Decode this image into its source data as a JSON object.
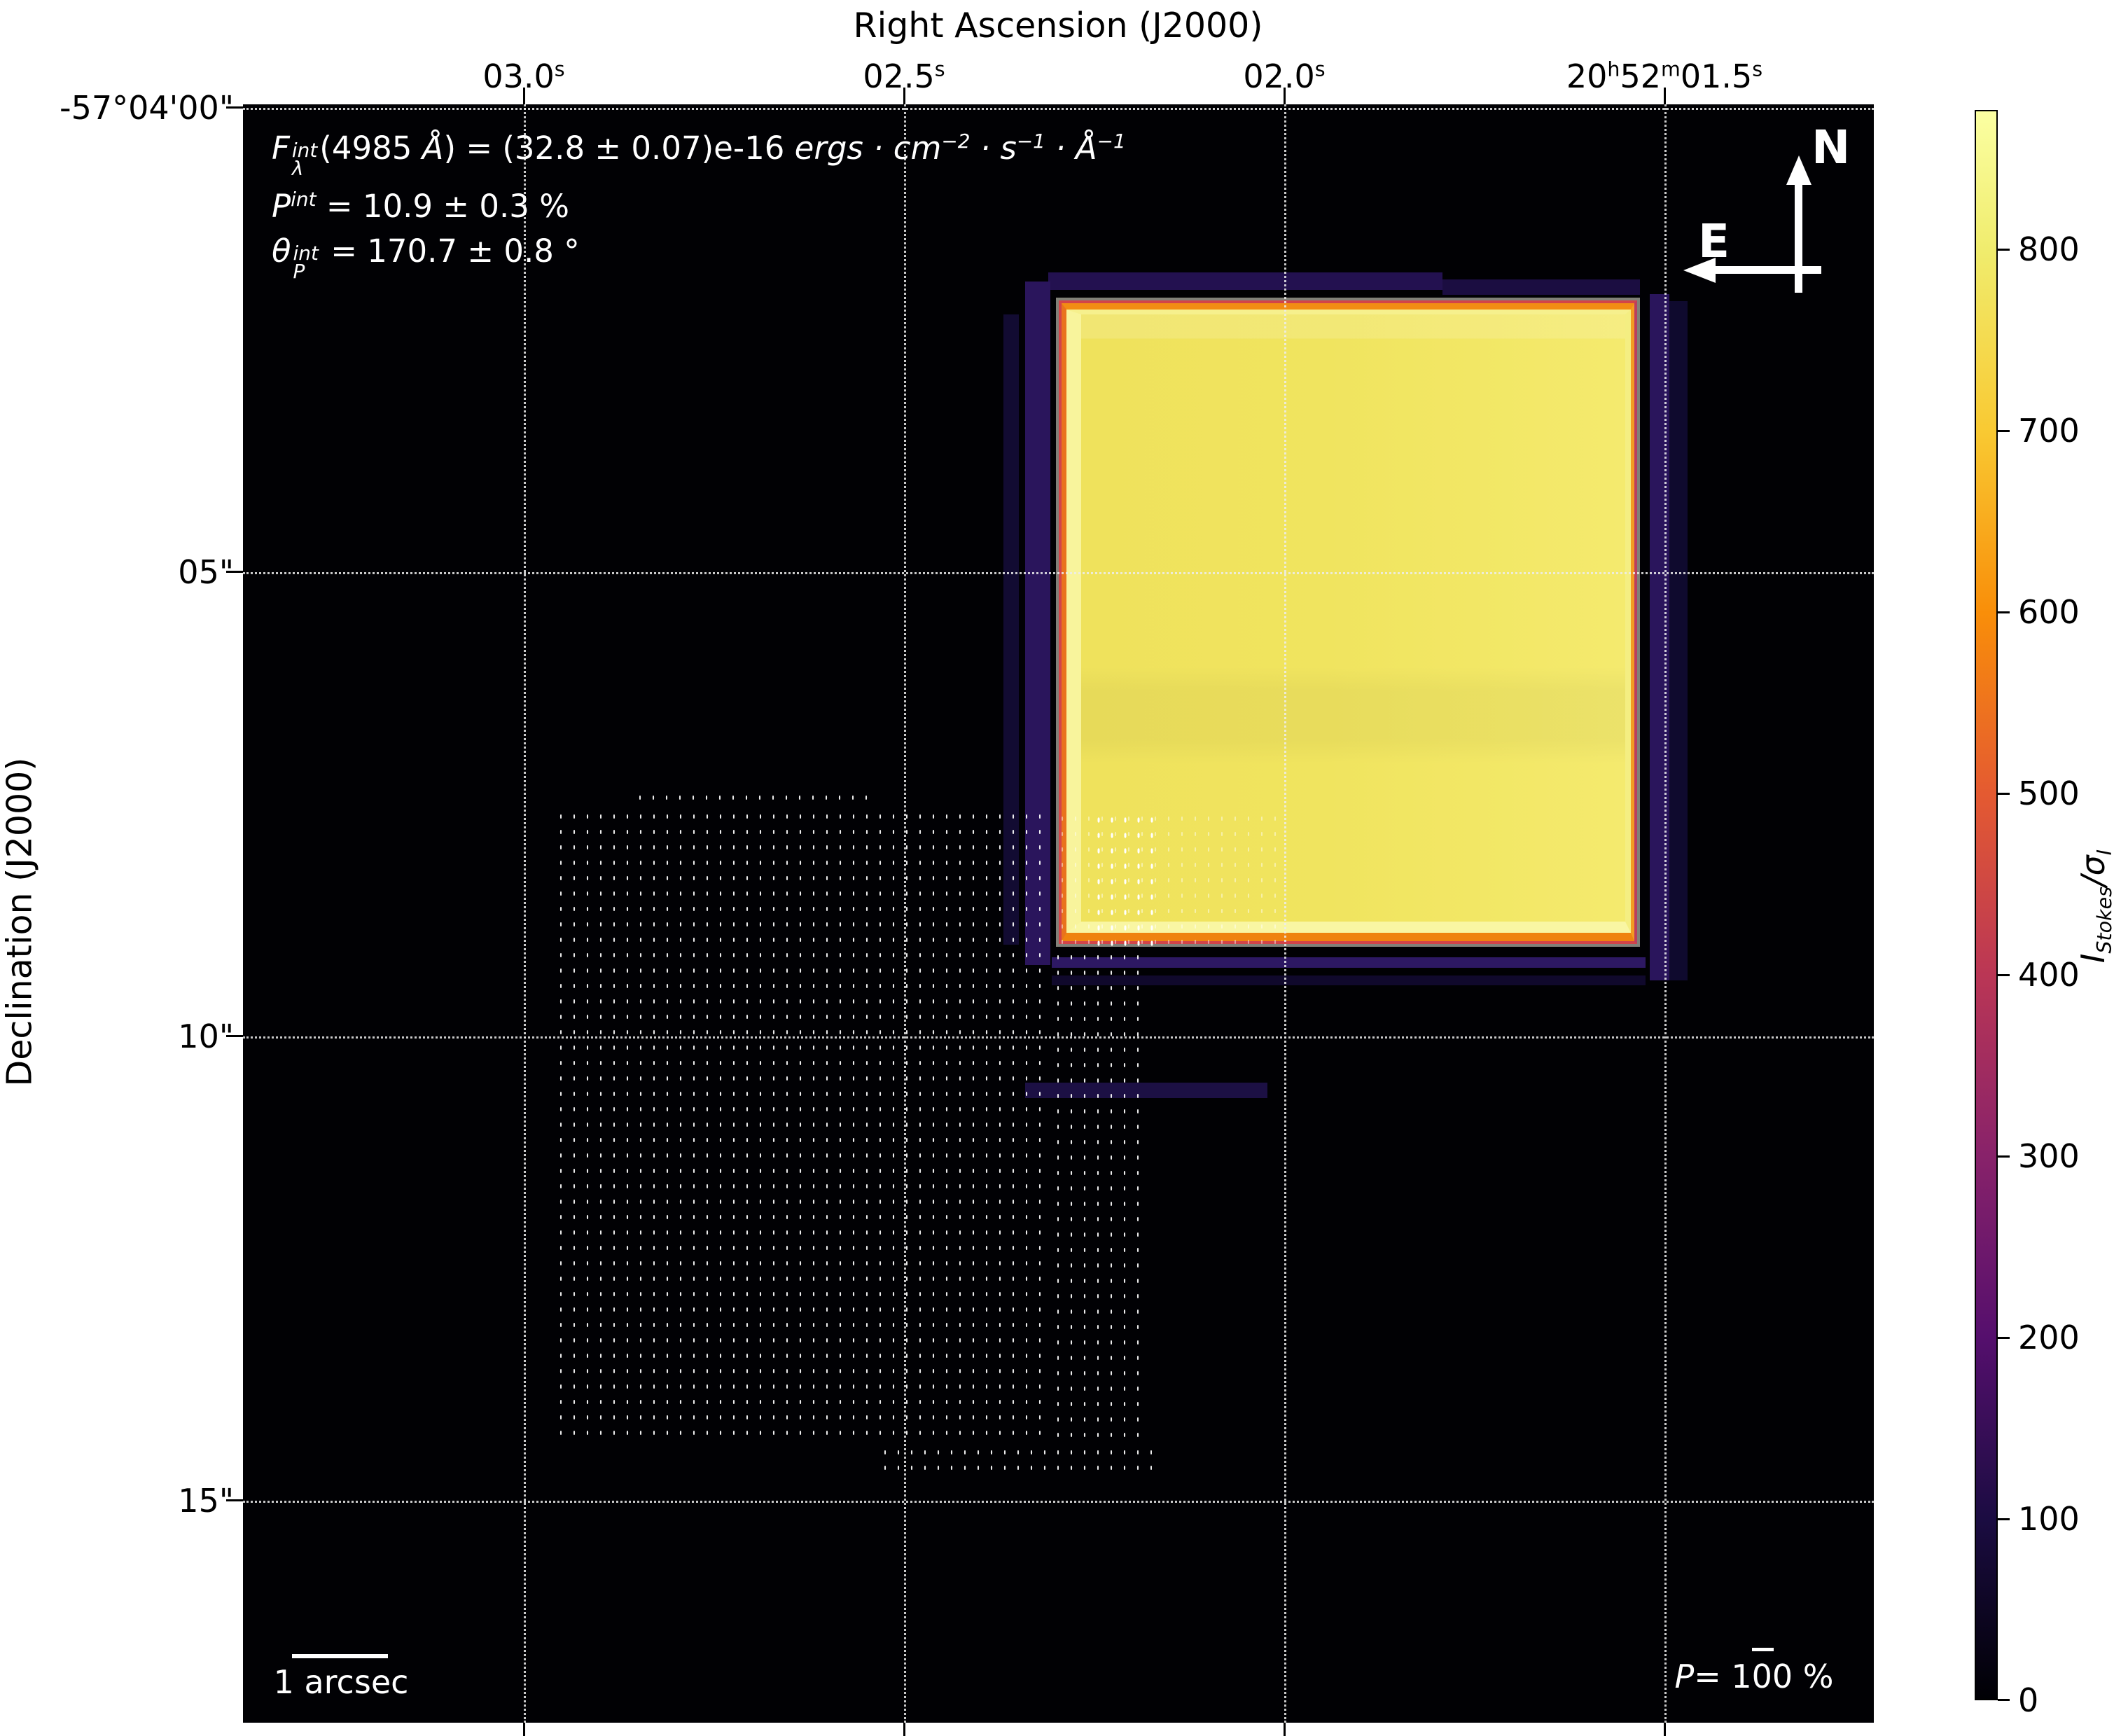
{
  "figure": {
    "background": "#ffffff",
    "plot_background": "#010104"
  },
  "axes": {
    "top": {
      "title": "Right Ascension (J2000)",
      "tick_labels": [
        {
          "html": "03.0<sup>s</sup>"
        },
        {
          "html": "02.5<sup>s</sup>"
        },
        {
          "html": "02.0<sup>s</sup>"
        },
        {
          "html": "20<sup>h</sup>52<sup>m</sup>01.5<sup>s</sup>"
        }
      ]
    },
    "left": {
      "title": "Declination (J2000)",
      "tick_labels": [
        "-57°04'00\"",
        "05\"",
        "10\"",
        "15\""
      ]
    }
  },
  "annotations": {
    "flux_html": "<i>F</i><span class='ss'><span class='t'><i>int</i></span><span class='b'><i>λ</i></span></span>(4985 <i>Å</i>) = (32.8 ± 0.07)e-16 <i>ergs · cm<sup>−2</sup> · s<sup>−1</sup> · Å<sup>−1</sup></i>",
    "pol_html": "<i>P</i><sup><i>int</i></sup> = 10.9 ± 0.3 %",
    "theta_html": "<i>θ</i><span class='ss'><span class='t'><i>int</i></span><span class='b'><i>P</i></span></span> = 170.7 ± 0.8 °"
  },
  "compass": {
    "north": "N",
    "east": "E"
  },
  "scale_bar": {
    "label": "1 arcsec"
  },
  "vector_scale": {
    "html": "<i>P</i>= 100 %"
  },
  "colorbar": {
    "label_html": "<i>I<sub>Stokes</sub>/σ<sub>I</sub></i>",
    "tick_labels": [
      "800",
      "700",
      "600",
      "500",
      "400",
      "300",
      "200",
      "100",
      "0"
    ],
    "vmin": 0,
    "vmax": 877,
    "colormap": "inferno",
    "gradient_stops": [
      "#000004",
      "#1b0c42",
      "#550f6d",
      "#88226a",
      "#ba3655",
      "#e45a31",
      "#f98e09",
      "#f9c932",
      "#f0ec6d",
      "#fbffa2"
    ]
  },
  "colors": {
    "halo_purple": "#2b155e",
    "halo_navy": "#10092c",
    "square_fill": "#f0e35d",
    "square_pale_stripe": "#f8f49e",
    "square_orange_edge": "#f28a12",
    "square_red_edge": "#d24449",
    "contour_gray": "#93938a",
    "gridline": "#ececec"
  },
  "chart_data": {
    "type": "heatmap",
    "title": "",
    "xlabel": "Right Ascension (J2000)",
    "ylabel": "Declination (J2000)",
    "x_tick_labels": [
      "03.0s",
      "02.5s",
      "02.0s",
      "20h52m01.5s"
    ],
    "y_tick_labels": [
      "-57°04'00\"",
      "05\"",
      "10\"",
      "15\""
    ],
    "x_axis_note": "RA decreases to the right (East points left, see compass)",
    "y_range_arcsec_note": "Declination from -57°04'00\" (top) to about -57°04'16.7\" (bottom)",
    "grid": true,
    "colorbar": {
      "label": "I_Stokes/σ_I",
      "ticks": [
        0,
        100,
        200,
        300,
        400,
        500,
        600,
        700,
        800
      ],
      "vmin": 0,
      "vmax": 877,
      "colormap": "inferno"
    },
    "features": {
      "background_value": 0,
      "bright_square_region": {
        "description": "saturated rectangular aperture of high I_Stokes/σ_I (~820, pale yellow) with thin inferno-colored contour edges (gray/red/orange) and dark purple halo (~100-200)",
        "ra_range_s": [
          2.29,
          1.54
        ],
        "dec_range": [
          "-57°04'02.0\"",
          "-57°04'09.1\""
        ]
      },
      "polarization_vector_field": {
        "description": "grid of faint short vertical white dashes (polarization vectors, P.A. ~171°) over lower-left quadrant",
        "approx_ra_range_s": [
          3.0,
          2.2
        ],
        "approx_dec_range": [
          "-57°04'07.3\"",
          "-57°04'14.2\""
        ]
      }
    },
    "annotations": [
      "F_λ^int(4985 Å) = (32.8 ± 0.07)e-16 ergs·cm⁻²·s⁻¹·Å⁻¹",
      "P^int = 10.9 ± 0.3 %",
      "θ_P^int = 170.7 ± 0.8 °"
    ],
    "scale_bar": "1 arcsec",
    "vector_length_legend": "P= 100 %",
    "compass": [
      "N up",
      "E left"
    ],
    "legend_position": "none"
  }
}
